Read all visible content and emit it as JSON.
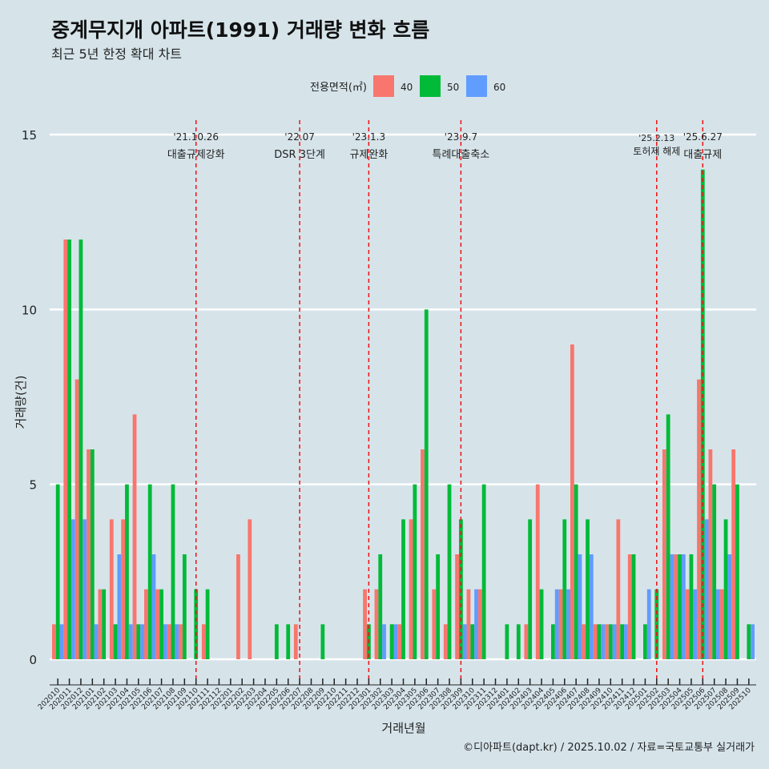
{
  "chart_data": {
    "type": "bar",
    "title": "중계무지개 아파트(1991) 거래량 변화 흐름",
    "subtitle": "최근 5년 한정 확대 차트",
    "xlabel": "거래년월",
    "ylabel": "거래량(건)",
    "caption": "©디아파트(dapt.kr) / 2025.10.02 / 자료=국토교통부 실거래가",
    "legend_title": "전용면적(㎡)",
    "legend_position": "top",
    "ylim": [
      0,
      15
    ],
    "yticks": [
      0,
      5,
      10,
      15
    ],
    "categories": [
      "202010",
      "202011",
      "202012",
      "202101",
      "202102",
      "202103",
      "202104",
      "202105",
      "202106",
      "202107",
      "202108",
      "202109",
      "202110",
      "202111",
      "202112",
      "202201",
      "202202",
      "202203",
      "202204",
      "202205",
      "202206",
      "202207",
      "202208",
      "202209",
      "202210",
      "202211",
      "202212",
      "202301",
      "202302",
      "202303",
      "202304",
      "202305",
      "202306",
      "202307",
      "202308",
      "202309",
      "202310",
      "202311",
      "202312",
      "202401",
      "202402",
      "202403",
      "202404",
      "202405",
      "202406",
      "202407",
      "202408",
      "202409",
      "202410",
      "202411",
      "202412",
      "202501",
      "202502",
      "202503",
      "202504",
      "202505",
      "202506",
      "202507",
      "202508",
      "202509",
      "202510"
    ],
    "series": [
      {
        "name": "40",
        "color": "#f8766d",
        "values": [
          1,
          12,
          8,
          6,
          2,
          4,
          4,
          7,
          2,
          2,
          1,
          1,
          0,
          1,
          0,
          0,
          3,
          4,
          0,
          0,
          0,
          1,
          0,
          0,
          0,
          0,
          0,
          2,
          2,
          0,
          1,
          4,
          6,
          2,
          1,
          3,
          2,
          2,
          0,
          0,
          0,
          1,
          5,
          0,
          2,
          9,
          1,
          1,
          1,
          4,
          3,
          0,
          0,
          6,
          3,
          2,
          8,
          6,
          2,
          6,
          0
        ]
      },
      {
        "name": "50",
        "color": "#00ba38",
        "values": [
          5,
          12,
          12,
          6,
          2,
          1,
          5,
          1,
          5,
          2,
          5,
          3,
          2,
          2,
          0,
          0,
          0,
          0,
          0,
          1,
          1,
          0,
          0,
          1,
          0,
          0,
          0,
          1,
          3,
          1,
          4,
          5,
          10,
          3,
          5,
          4,
          1,
          5,
          0,
          1,
          1,
          4,
          2,
          1,
          4,
          5,
          4,
          1,
          1,
          1,
          3,
          1,
          2,
          7,
          3,
          3,
          14,
          5,
          4,
          5,
          1
        ]
      },
      {
        "name": "60",
        "color": "#619cff",
        "values": [
          1,
          4,
          4,
          1,
          0,
          3,
          1,
          1,
          3,
          1,
          1,
          0,
          0,
          0,
          0,
          0,
          0,
          0,
          0,
          0,
          0,
          0,
          0,
          0,
          0,
          0,
          0,
          0,
          1,
          1,
          0,
          0,
          0,
          0,
          0,
          1,
          2,
          0,
          0,
          0,
          0,
          0,
          0,
          2,
          2,
          3,
          3,
          1,
          1,
          1,
          0,
          2,
          0,
          3,
          3,
          2,
          4,
          2,
          3,
          0,
          1
        ]
      }
    ],
    "annotations": [
      {
        "category": "202110",
        "date": "'21.10.26",
        "label": "대출규제강화"
      },
      {
        "category": "202207",
        "date": "'22.07",
        "label": "DSR 3단계"
      },
      {
        "category": "202301",
        "date": "'23.1.3",
        "label": "규제완화"
      },
      {
        "category": "202309",
        "date": "'23.9.7",
        "label": "특례대출축소"
      },
      {
        "category": "202502",
        "date": "'25.2.13",
        "label": "토허제 해제"
      },
      {
        "category": "202506",
        "date": "'25.6.27",
        "label": "대출규제"
      }
    ]
  }
}
